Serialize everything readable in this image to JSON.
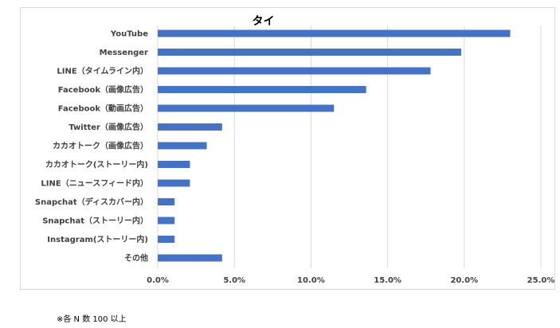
{
  "chart_data": {
    "type": "bar",
    "orientation": "horizontal",
    "title": "タイ",
    "categories": [
      "YouTube",
      "Messenger",
      "LINE（タイムライン内）",
      "Facebook（画像広告）",
      "Facebook（動画広告）",
      "Twitter（画像広告）",
      "カカオトーク（画像広告）",
      "カカオトーク(ストーリー内)",
      "LINE（ニュースフィード内）",
      "Snapchat（ディスカバー内）",
      "Snapchat（ストーリー内）",
      "Instagram(ストーリー内)",
      "その他"
    ],
    "values": [
      0.23,
      0.198,
      0.178,
      0.136,
      0.115,
      0.042,
      0.032,
      0.021,
      0.021,
      0.011,
      0.011,
      0.011,
      0.042
    ],
    "xlim": [
      0,
      0.25
    ],
    "xticks": [
      "0.0%",
      "5.0%",
      "10.0%",
      "15.0%",
      "20.0%",
      "25.0%"
    ],
    "xtick_values": [
      0,
      0.05,
      0.1,
      0.15,
      0.2,
      0.25
    ],
    "grid": "vertical",
    "bar_color": "#4472c4",
    "grid_color": "#d9d9d9",
    "xlabel": "",
    "ylabel": ""
  },
  "footnote": "※各 N 数 100 以上"
}
